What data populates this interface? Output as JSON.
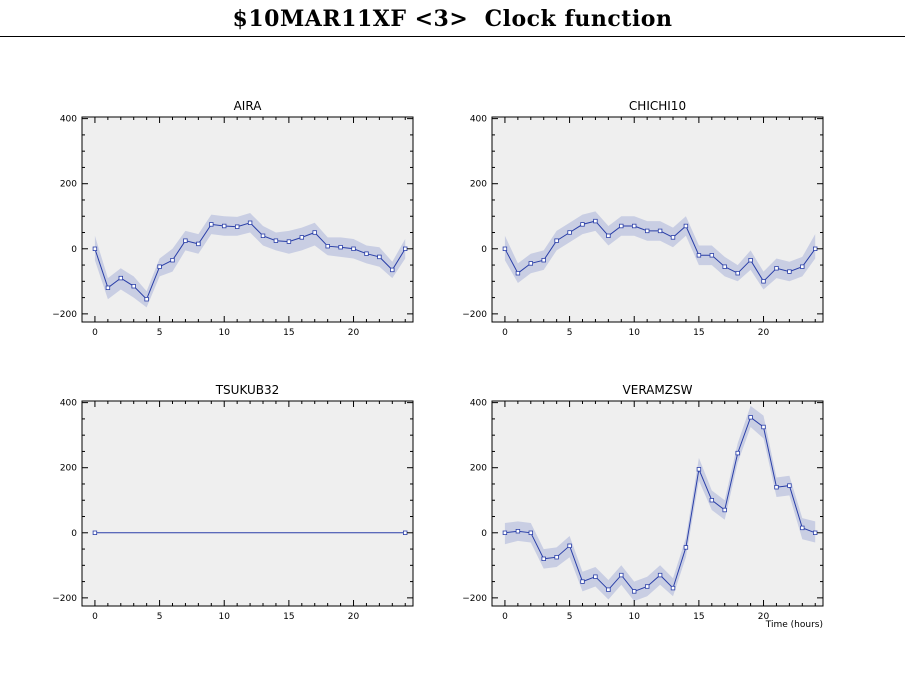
{
  "page": {
    "title": "$10MAR11XF <3>  Clock function"
  },
  "colors": {
    "plot_bg": "#efefef",
    "band": "#c9cee3",
    "line": "#2a3fa8",
    "axis": "#000000"
  },
  "chart_data": [
    {
      "type": "line",
      "title": "AIRA",
      "xlabel": "",
      "ylabel": "",
      "xlim": [
        -1,
        24.6
      ],
      "ylim": [
        -225,
        405
      ],
      "xticks": [
        0,
        5,
        10,
        15,
        20
      ],
      "yticks": [
        -200,
        0,
        200,
        400
      ],
      "series": [
        {
          "x": [
            0,
            1,
            2,
            3,
            4,
            5,
            6,
            7,
            8,
            9,
            10,
            11,
            12,
            13,
            14,
            15,
            16,
            17,
            18,
            19,
            20,
            21,
            22,
            23,
            24
          ],
          "values": [
            0,
            -120,
            -90,
            -115,
            -155,
            -55,
            -35,
            25,
            15,
            75,
            70,
            68,
            80,
            40,
            25,
            22,
            35,
            50,
            8,
            5,
            0,
            -15,
            -25,
            -65,
            0
          ],
          "lower": [
            -35,
            -155,
            -125,
            -150,
            -180,
            -85,
            -70,
            -5,
            -15,
            45,
            40,
            40,
            50,
            10,
            -5,
            -15,
            -5,
            10,
            -20,
            -25,
            -30,
            -45,
            -55,
            -90,
            -30
          ],
          "upper": [
            40,
            -90,
            -60,
            -85,
            -130,
            -30,
            0,
            55,
            45,
            105,
            100,
            98,
            110,
            70,
            50,
            55,
            65,
            80,
            35,
            35,
            30,
            10,
            5,
            -40,
            30
          ]
        }
      ]
    },
    {
      "type": "line",
      "title": "CHICHI10",
      "xlabel": "",
      "ylabel": "",
      "xlim": [
        -1,
        24.6
      ],
      "ylim": [
        -225,
        405
      ],
      "xticks": [
        0,
        5,
        10,
        15,
        20
      ],
      "yticks": [
        -200,
        0,
        200,
        400
      ],
      "series": [
        {
          "x": [
            0,
            1,
            2,
            3,
            4,
            5,
            6,
            7,
            8,
            9,
            10,
            11,
            12,
            13,
            14,
            15,
            16,
            17,
            18,
            19,
            20,
            21,
            22,
            23,
            24
          ],
          "values": [
            0,
            -75,
            -45,
            -35,
            25,
            50,
            75,
            85,
            40,
            70,
            70,
            55,
            55,
            35,
            70,
            -20,
            -20,
            -55,
            -75,
            -35,
            -100,
            -60,
            -70,
            -55,
            0
          ],
          "lower": [
            -35,
            -105,
            -75,
            -65,
            -5,
            20,
            45,
            55,
            10,
            40,
            40,
            25,
            25,
            5,
            40,
            -50,
            -50,
            -85,
            -100,
            -65,
            -125,
            -90,
            -100,
            -85,
            -30
          ],
          "upper": [
            40,
            -45,
            -15,
            -5,
            55,
            80,
            105,
            115,
            70,
            100,
            100,
            85,
            85,
            65,
            100,
            10,
            10,
            -25,
            -50,
            -5,
            -70,
            -30,
            -40,
            -25,
            45
          ]
        }
      ]
    },
    {
      "type": "line",
      "title": "TSUKUB32",
      "xlabel": "",
      "ylabel": "",
      "xlim": [
        -1,
        24.6
      ],
      "ylim": [
        -225,
        405
      ],
      "xticks": [
        0,
        5,
        10,
        15,
        20
      ],
      "yticks": [
        -200,
        0,
        200,
        400
      ],
      "series": [
        {
          "x": [
            0,
            24
          ],
          "values": [
            0,
            0
          ],
          "lower": [
            0,
            0
          ],
          "upper": [
            0,
            0
          ]
        }
      ]
    },
    {
      "type": "line",
      "title": "VERAMZSW",
      "xlabel": "Time (hours)",
      "ylabel": "",
      "xlim": [
        -1,
        24.6
      ],
      "ylim": [
        -225,
        405
      ],
      "xticks": [
        0,
        5,
        10,
        15,
        20
      ],
      "yticks": [
        -200,
        0,
        200,
        400
      ],
      "series": [
        {
          "x": [
            0,
            1,
            2,
            3,
            4,
            5,
            6,
            7,
            8,
            9,
            10,
            11,
            12,
            13,
            14,
            15,
            16,
            17,
            18,
            19,
            20,
            21,
            22,
            23,
            24
          ],
          "values": [
            0,
            5,
            0,
            -80,
            -75,
            -40,
            -150,
            -135,
            -175,
            -130,
            -180,
            -165,
            -130,
            -170,
            -45,
            195,
            100,
            70,
            245,
            355,
            325,
            140,
            145,
            15,
            0
          ],
          "lower": [
            -35,
            -25,
            -30,
            -110,
            -105,
            -75,
            -180,
            -165,
            -205,
            -160,
            -210,
            -195,
            -160,
            -195,
            -75,
            160,
            70,
            40,
            215,
            325,
            290,
            110,
            115,
            -20,
            -30
          ],
          "upper": [
            30,
            35,
            30,
            -50,
            -45,
            -10,
            -120,
            -105,
            -145,
            -100,
            -150,
            -135,
            -100,
            -140,
            -15,
            230,
            130,
            100,
            275,
            390,
            360,
            170,
            175,
            45,
            35
          ]
        }
      ]
    }
  ]
}
